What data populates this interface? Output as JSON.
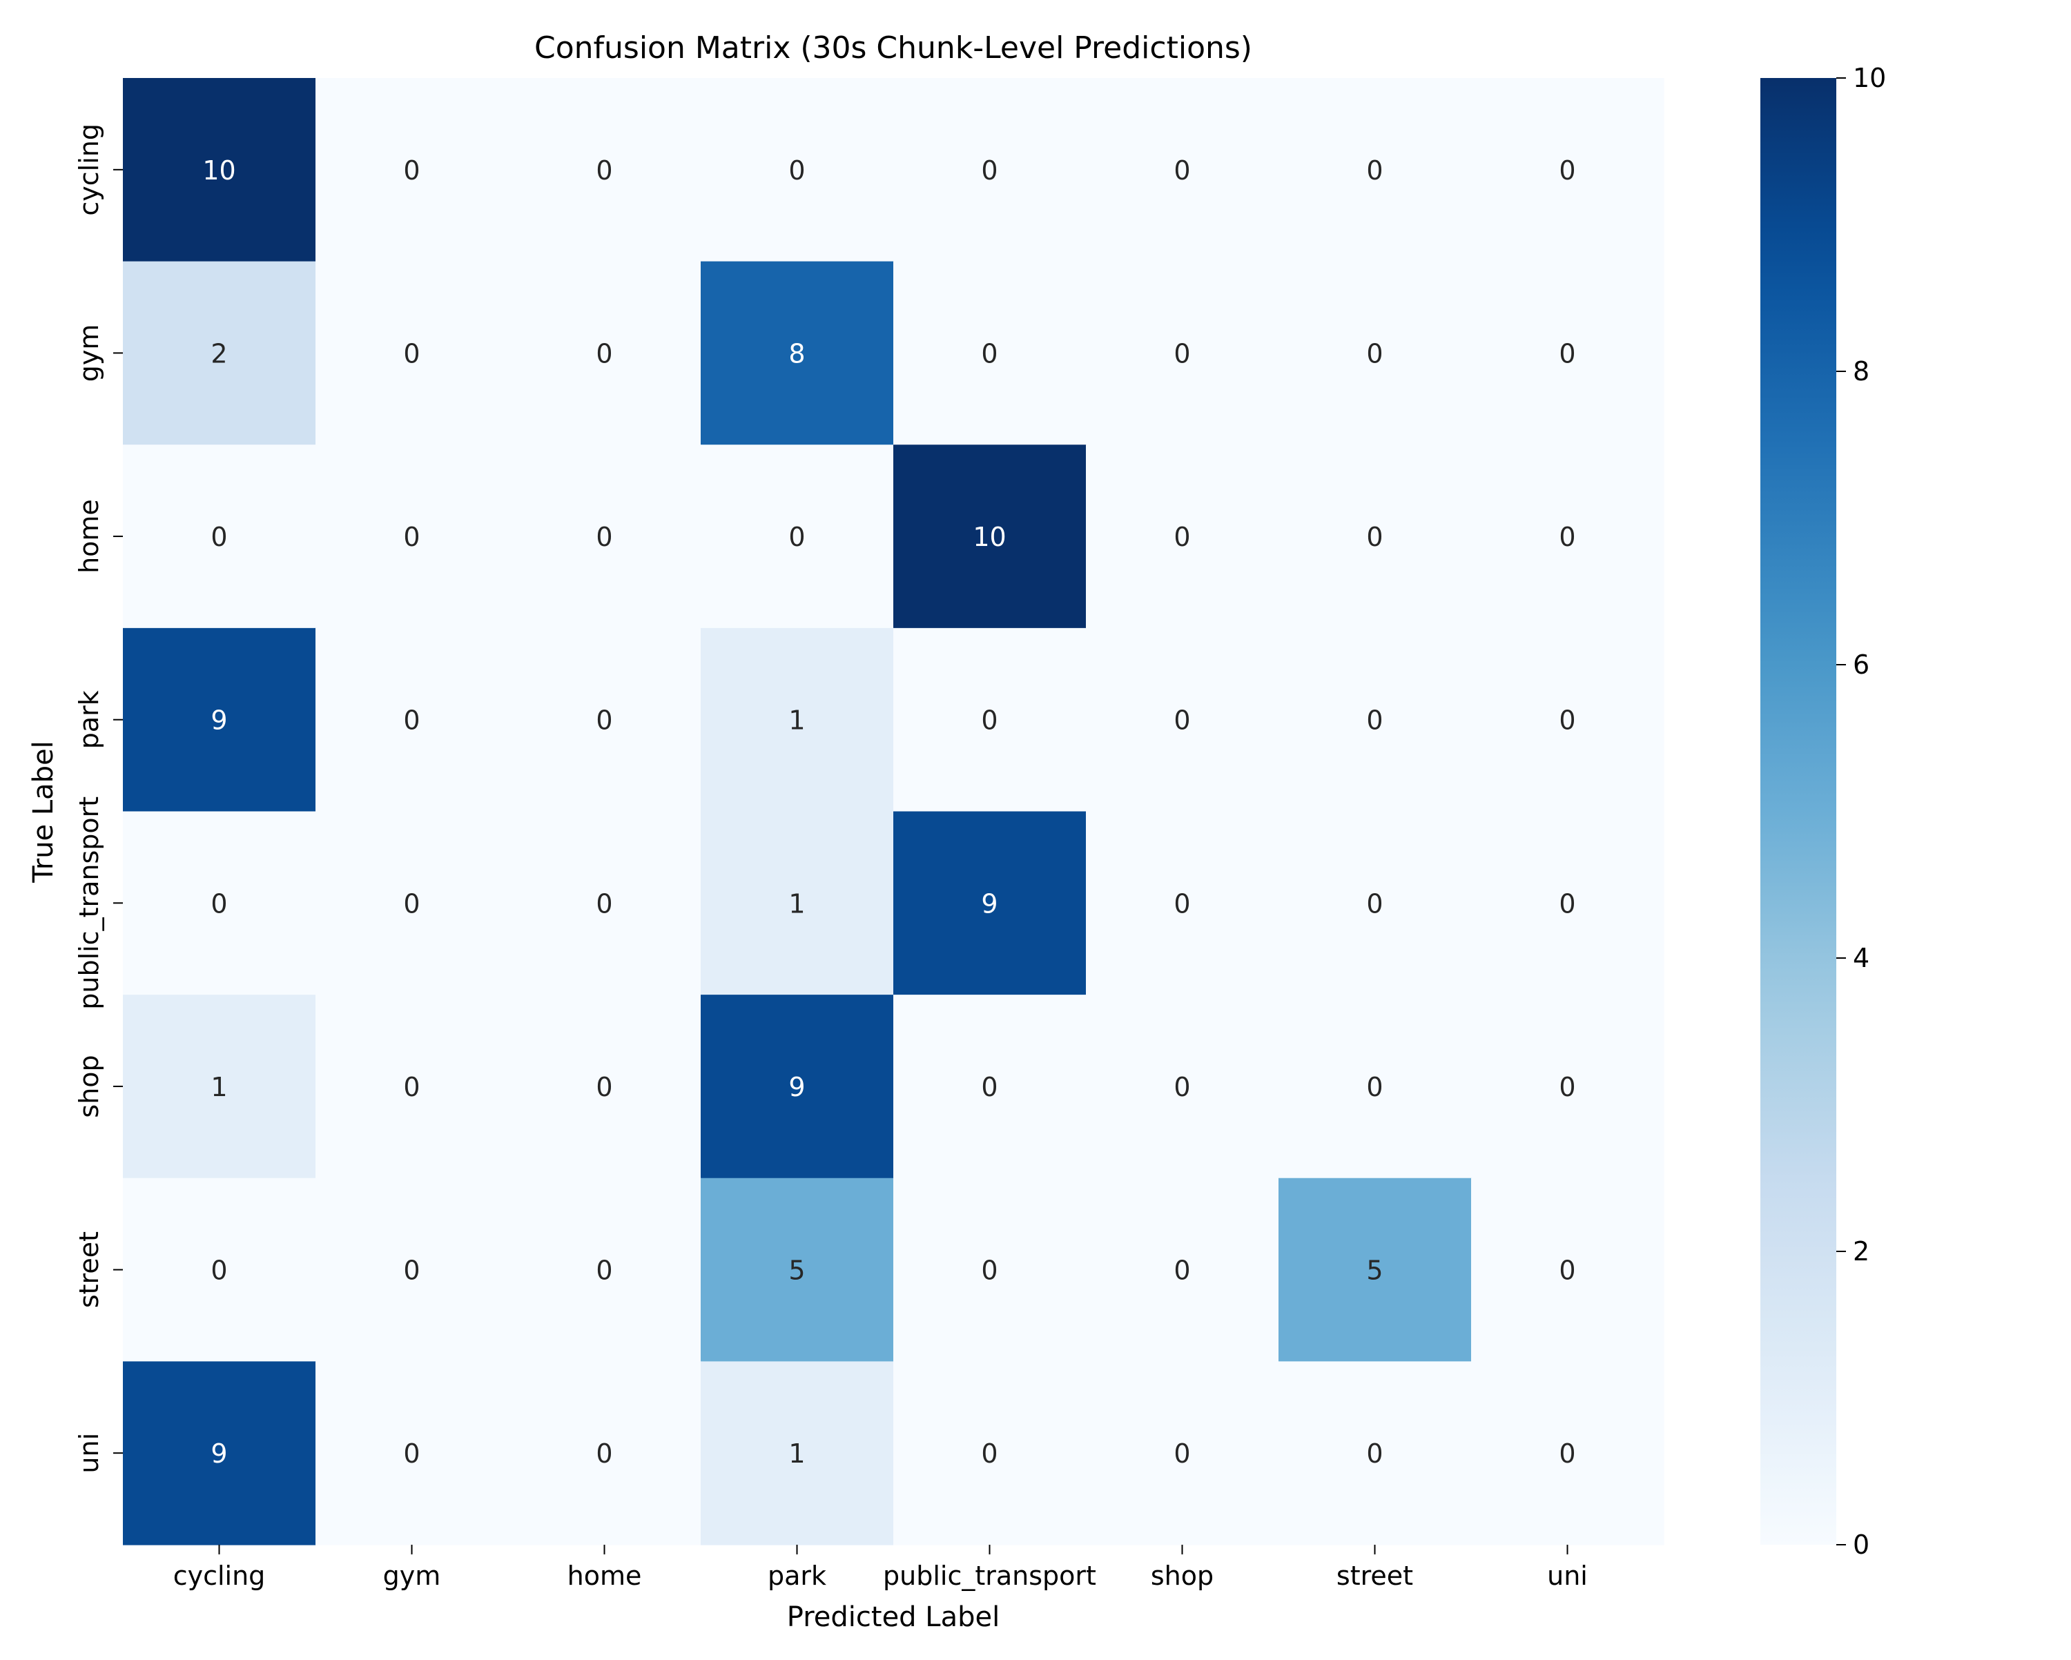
{
  "chart_data": {
    "type": "heatmap",
    "title": "Confusion Matrix (30s Chunk-Level Predictions)",
    "xlabel": "Predicted Label",
    "ylabel": "True Label",
    "x_categories": [
      "cycling",
      "gym",
      "home",
      "park",
      "public_transport",
      "shop",
      "street",
      "uni"
    ],
    "y_categories": [
      "cycling",
      "gym",
      "home",
      "park",
      "public_transport",
      "shop",
      "street",
      "uni"
    ],
    "values": [
      [
        10,
        0,
        0,
        0,
        0,
        0,
        0,
        0
      ],
      [
        2,
        0,
        0,
        8,
        0,
        0,
        0,
        0
      ],
      [
        0,
        0,
        0,
        0,
        10,
        0,
        0,
        0
      ],
      [
        9,
        0,
        0,
        1,
        0,
        0,
        0,
        0
      ],
      [
        0,
        0,
        0,
        1,
        9,
        0,
        0,
        0
      ],
      [
        1,
        0,
        0,
        9,
        0,
        0,
        0,
        0
      ],
      [
        0,
        0,
        0,
        5,
        0,
        0,
        5,
        0
      ],
      [
        9,
        0,
        0,
        1,
        0,
        0,
        0,
        0
      ]
    ],
    "colorbar": {
      "min": 0,
      "max": 10,
      "ticks": [
        0,
        2,
        4,
        6,
        8,
        10
      ],
      "colormap": "Blues"
    }
  }
}
